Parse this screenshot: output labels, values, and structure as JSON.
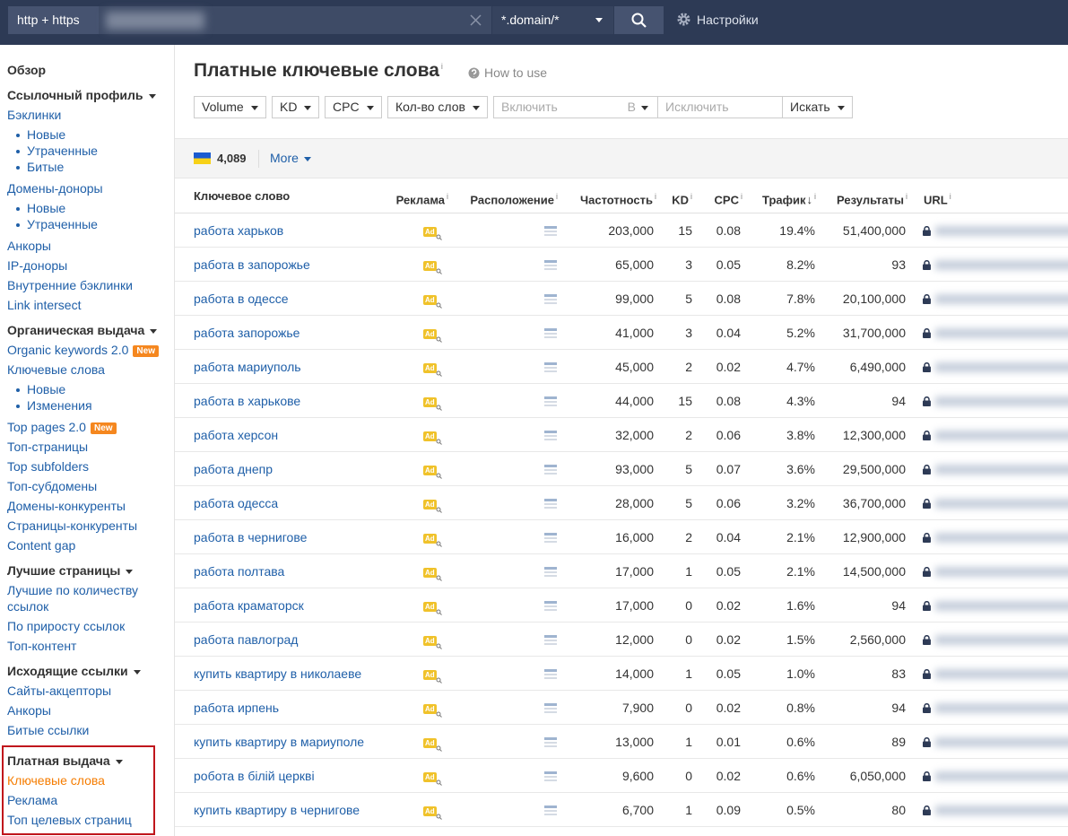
{
  "topbar": {
    "protocol": "http + https",
    "mode": "*.domain/*",
    "settings": "Настройки"
  },
  "sidebar": {
    "groups": [
      {
        "title": "Обзор",
        "caret": false,
        "items": []
      },
      {
        "title": "Ссылочный профиль",
        "caret": true,
        "items": [
          {
            "label": "Бэклинки"
          },
          {
            "label": "Новые",
            "sub": true
          },
          {
            "label": "Утраченные",
            "sub": true
          },
          {
            "label": "Битые",
            "sub": true
          },
          {
            "label": "Домены-доноры"
          },
          {
            "label": "Новые",
            "sub": true
          },
          {
            "label": "Утраченные",
            "sub": true
          },
          {
            "label": "Анкоры"
          },
          {
            "label": "IP-доноры"
          },
          {
            "label": "Внутренние бэклинки"
          },
          {
            "label": "Link intersect"
          }
        ]
      },
      {
        "title": "Органическая выдача",
        "caret": true,
        "items": [
          {
            "label": "Organic keywords 2.0",
            "badge": "New"
          },
          {
            "label": "Ключевые слова"
          },
          {
            "label": "Новые",
            "sub": true
          },
          {
            "label": "Изменения",
            "sub": true
          },
          {
            "label": "Top pages 2.0",
            "badge": "New"
          },
          {
            "label": "Топ-страницы"
          },
          {
            "label": "Top subfolders"
          },
          {
            "label": "Топ-субдомены"
          },
          {
            "label": "Домены-конкуренты"
          },
          {
            "label": "Страницы-конкуренты"
          },
          {
            "label": "Content gap"
          }
        ]
      },
      {
        "title": "Лучшие страницы",
        "caret": true,
        "items": [
          {
            "label": "Лучшие по количеству ссылок"
          },
          {
            "label": "По приросту ссылок"
          },
          {
            "label": "Топ-контент"
          }
        ]
      },
      {
        "title": "Исходящие ссылки",
        "caret": true,
        "items": [
          {
            "label": "Сайты-акцепторы"
          },
          {
            "label": "Анкоры"
          },
          {
            "label": "Битые ссылки"
          }
        ]
      },
      {
        "title": "Платная выдача",
        "caret": true,
        "highlighted": true,
        "items": [
          {
            "label": "Ключевые слова",
            "active": true
          },
          {
            "label": "Реклама"
          },
          {
            "label": "Топ целевых страниц"
          }
        ]
      }
    ]
  },
  "header": {
    "title": "Платные ключевые слова",
    "info": "i",
    "how_to_use": "How to use"
  },
  "filters": {
    "dropdowns": [
      "Volume",
      "KD",
      "CPC",
      "Кол-во слов"
    ],
    "include_placeholder": "Включить",
    "include_scope": "В",
    "exclude_placeholder": "Исключить",
    "search_button": "Искать"
  },
  "summary": {
    "count": "4,089",
    "more": "More"
  },
  "table": {
    "columns": [
      {
        "label": "Ключевое слово"
      },
      {
        "label": "Реклама",
        "info": "i"
      },
      {
        "label": "Расположение",
        "info": "i"
      },
      {
        "label": "Частотность",
        "info": "i"
      },
      {
        "label": "KD",
        "info": "i"
      },
      {
        "label": "CPC",
        "info": "i"
      },
      {
        "label": "Трафик",
        "sort": "↓",
        "info": "i"
      },
      {
        "label": "Результаты",
        "info": "i"
      },
      {
        "label": "URL",
        "info": "i"
      }
    ],
    "ad_badge": "Ad",
    "rows": [
      [
        "работа харьков",
        "203,000",
        "15",
        "0.08",
        "19.4%",
        "51,400,000"
      ],
      [
        "работа в запорожье",
        "65,000",
        "3",
        "0.05",
        "8.2%",
        "93"
      ],
      [
        "работа в одессе",
        "99,000",
        "5",
        "0.08",
        "7.8%",
        "20,100,000"
      ],
      [
        "работа запорожье",
        "41,000",
        "3",
        "0.04",
        "5.2%",
        "31,700,000"
      ],
      [
        "работа мариуполь",
        "45,000",
        "2",
        "0.02",
        "4.7%",
        "6,490,000"
      ],
      [
        "работа в харькове",
        "44,000",
        "15",
        "0.08",
        "4.3%",
        "94"
      ],
      [
        "работа херсон",
        "32,000",
        "2",
        "0.06",
        "3.8%",
        "12,300,000"
      ],
      [
        "работа днепр",
        "93,000",
        "5",
        "0.07",
        "3.6%",
        "29,500,000"
      ],
      [
        "работа одесса",
        "28,000",
        "5",
        "0.06",
        "3.2%",
        "36,700,000"
      ],
      [
        "работа в чернигове",
        "16,000",
        "2",
        "0.04",
        "2.1%",
        "12,900,000"
      ],
      [
        "работа полтава",
        "17,000",
        "1",
        "0.05",
        "2.1%",
        "14,500,000"
      ],
      [
        "работа краматорск",
        "17,000",
        "0",
        "0.02",
        "1.6%",
        "94"
      ],
      [
        "работа павлоград",
        "12,000",
        "0",
        "0.02",
        "1.5%",
        "2,560,000"
      ],
      [
        "купить квартиру в николаеве",
        "14,000",
        "1",
        "0.05",
        "1.0%",
        "83"
      ],
      [
        "работа ирпень",
        "7,900",
        "0",
        "0.02",
        "0.8%",
        "94"
      ],
      [
        "купить квартиру в мариуполе",
        "13,000",
        "1",
        "0.01",
        "0.6%",
        "89"
      ],
      [
        "робота в білій церкві",
        "9,600",
        "0",
        "0.02",
        "0.6%",
        "6,050,000"
      ],
      [
        "купить квартиру в чернигове",
        "6,700",
        "1",
        "0.09",
        "0.5%",
        "80"
      ]
    ]
  }
}
